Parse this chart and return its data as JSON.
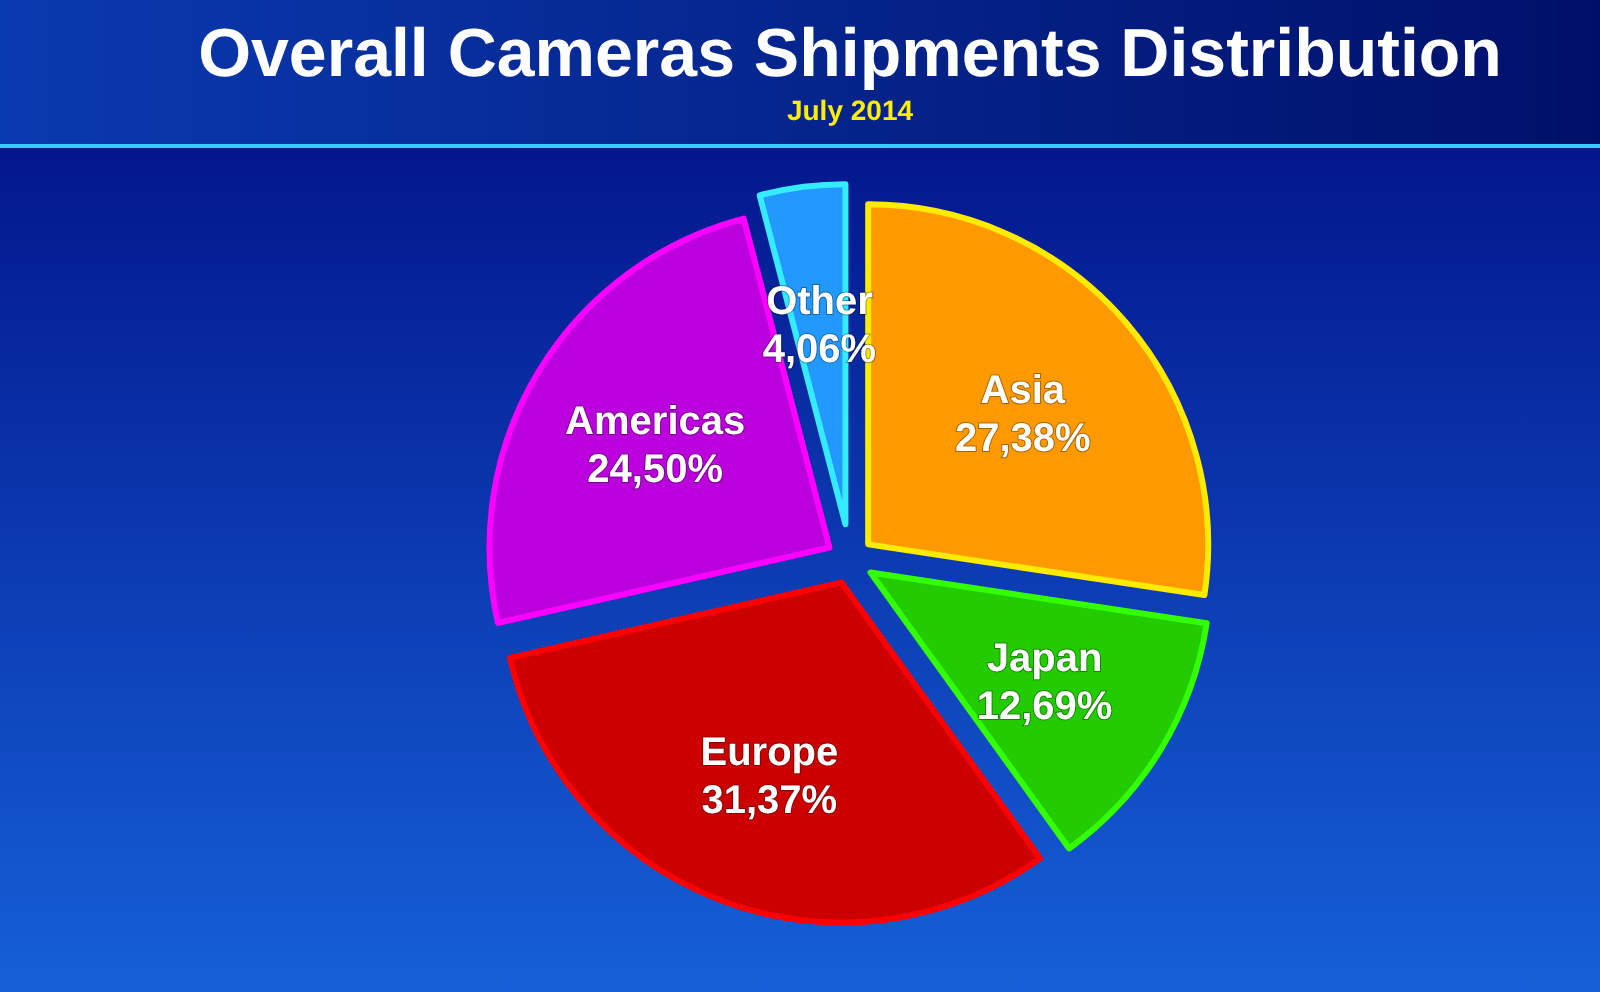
{
  "chart_data": {
    "type": "pie",
    "title": "Overall Cameras Shipments Distribution",
    "subtitle": "July 2014",
    "categories": [
      "Asia",
      "Japan",
      "Europe",
      "Americas",
      "Other"
    ],
    "values": [
      27.38,
      12.69,
      31.37,
      24.5,
      4.06
    ],
    "value_labels": [
      "27,38%",
      "12,69%",
      "31,37%",
      "24,50%",
      "4,06%"
    ],
    "colors": [
      "#ff9900",
      "#22cc00",
      "#cc0000",
      "#bb00dd",
      "#2299ff"
    ]
  }
}
